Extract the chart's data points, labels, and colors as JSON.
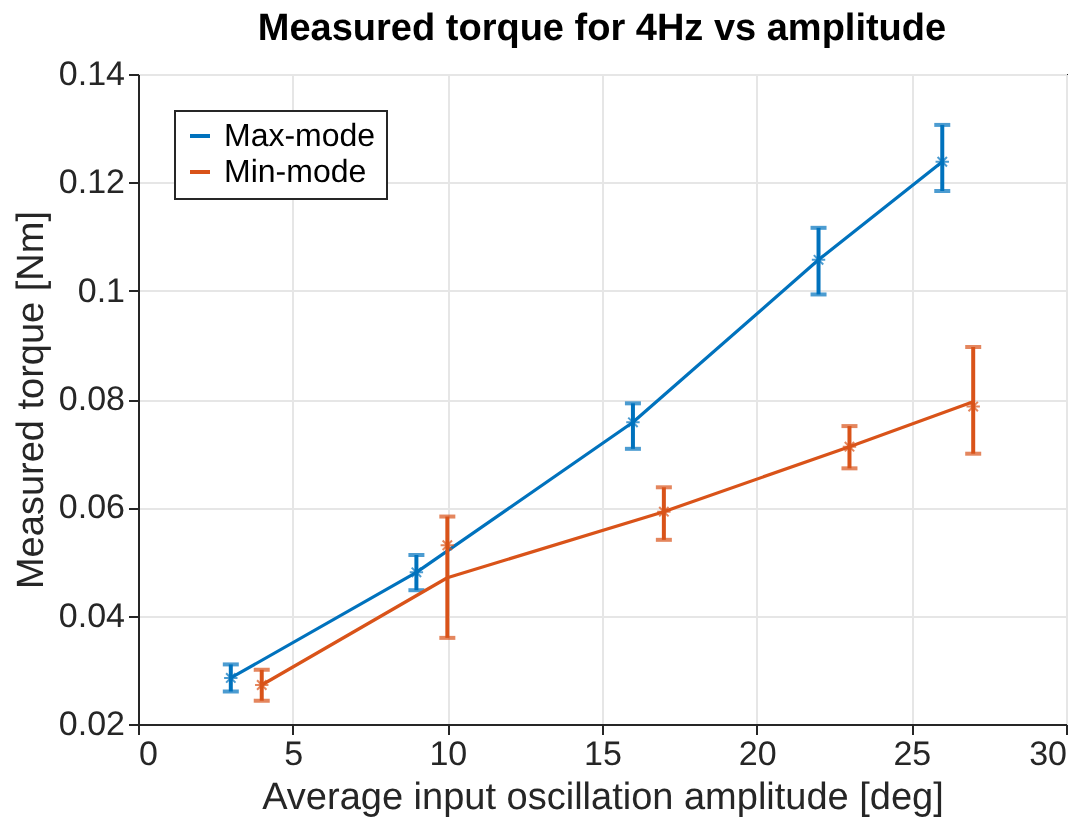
{
  "chart_data": {
    "type": "line",
    "title": "Measured torque for 4Hz vs amplitude",
    "xlabel": "Average input oscillation amplitude [deg]",
    "ylabel": "Measured torque [Nm]",
    "xlim": [
      0,
      30
    ],
    "xticks": [
      0,
      5,
      10,
      15,
      20,
      25,
      30
    ],
    "ylim": [
      0.02,
      0.14
    ],
    "yticks": [
      0.02,
      0.04,
      0.06,
      0.08,
      0.1,
      0.12,
      0.14
    ],
    "grid": true,
    "legend": "top left",
    "line_style": "solid",
    "marker": "none",
    "series": [
      {
        "name": "Max-mode",
        "color": "#0072bd",
        "x": [
          3,
          9,
          16,
          22,
          26
        ],
        "values": [
          0.0285,
          0.048,
          0.0757,
          0.1057,
          0.1238
        ],
        "errors": [
          [
            0.026,
            0.031
          ],
          [
            0.0447,
            0.0512
          ],
          [
            0.0708,
            0.0792
          ],
          [
            0.0993,
            0.1116
          ],
          [
            0.1184,
            0.1306
          ]
        ]
      },
      {
        "name": "Min-mode",
        "color": "#d95319",
        "x": [
          4,
          10,
          17,
          23,
          27
        ],
        "values": [
          0.0272,
          0.047,
          0.0592,
          0.0712,
          0.0795
        ],
        "errors": [
          [
            0.0243,
            0.03
          ],
          [
            0.0359,
            0.0583
          ],
          [
            0.054,
            0.0637
          ],
          [
            0.0672,
            0.075
          ],
          [
            0.0699,
            0.0896
          ]
        ]
      },
      {
        "type": "scatter",
        "marker": "cross",
        "color": "#0072bd",
        "x": [
          3,
          9,
          16,
          22,
          26
        ],
        "values": [
          0.0285,
          0.048,
          0.0757,
          0.1057,
          0.1238
        ]
      },
      {
        "type": "scatter",
        "marker": "cross",
        "color": "#d95319",
        "x": [
          4,
          10,
          17,
          23,
          27
        ],
        "values": [
          0.0272,
          0.053,
          0.0592,
          0.0712,
          0.0786
        ]
      }
    ]
  }
}
